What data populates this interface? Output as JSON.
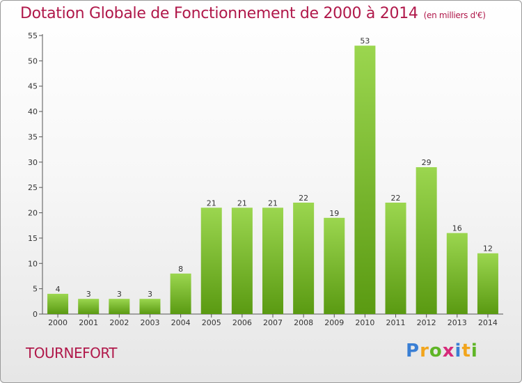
{
  "header": {
    "title": "Dotation Globale de Fonctionnement de 2000 à 2014",
    "subtitle": "(en milliers d'€)"
  },
  "commune_label": "TOURNEFORT",
  "brand": {
    "logo_text": "Proxiti",
    "letters": [
      {
        "ch": "P",
        "color": "#3a7fd4"
      },
      {
        "ch": "r",
        "color": "#f2a51c"
      },
      {
        "ch": "o",
        "color": "#5fb526"
      },
      {
        "ch": "x",
        "color": "#d62a7a"
      },
      {
        "ch": "i",
        "color": "#3a7fd4"
      },
      {
        "ch": "t",
        "color": "#f2a51c"
      },
      {
        "ch": "i",
        "color": "#5fb526"
      }
    ]
  },
  "colors": {
    "title": "#b0184a",
    "bar_top": "#9bd64f",
    "bar_bottom": "#5a9a12"
  },
  "chart_data": {
    "type": "bar",
    "title": "Dotation Globale de Fonctionnement de 2000 à 2014",
    "subtitle": "(en milliers d'€)",
    "categories": [
      "2000",
      "2001",
      "2002",
      "2003",
      "2004",
      "2005",
      "2006",
      "2007",
      "2008",
      "2009",
      "2010",
      "2011",
      "2012",
      "2013",
      "2014"
    ],
    "values": [
      4,
      3,
      3,
      3,
      8,
      21,
      21,
      21,
      22,
      19,
      53,
      22,
      29,
      16,
      12
    ],
    "ylim": [
      0,
      55
    ],
    "yticks": [
      0,
      5,
      10,
      15,
      20,
      25,
      30,
      35,
      40,
      45,
      50,
      55
    ],
    "grid": false,
    "xlabel": "",
    "ylabel": ""
  }
}
